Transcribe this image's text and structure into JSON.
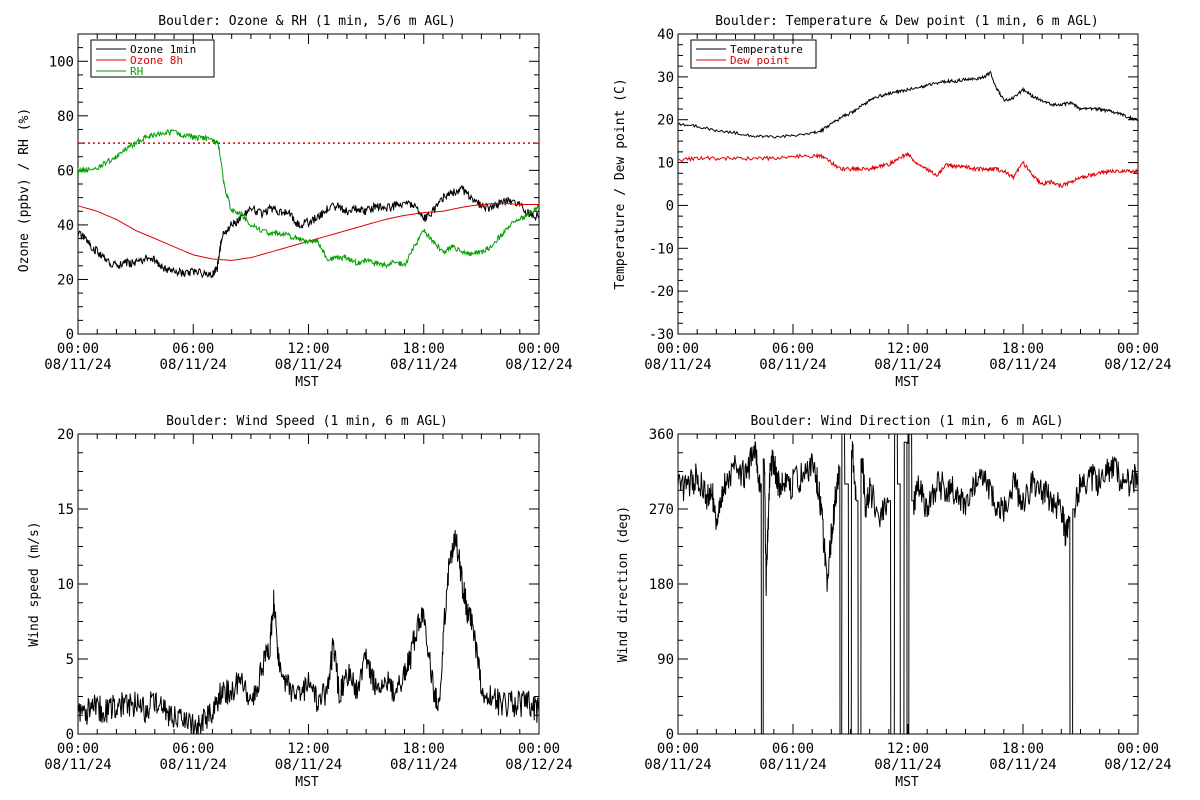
{
  "chart_data": [
    {
      "type": "line",
      "title": "Boulder: Ozone & RH (1 min, 5/6 m AGL)",
      "xlabel": "MST",
      "ylabel": "Ozone (ppbv) / RH (%)",
      "xlim_hours": [
        0,
        24
      ],
      "ylim": [
        0,
        110
      ],
      "yticks": [
        0,
        20,
        40,
        60,
        80,
        100
      ],
      "xtick_times": [
        "00:00",
        "06:00",
        "12:00",
        "18:00",
        "00:00"
      ],
      "xtick_dates": [
        "08/11/24",
        "08/11/24",
        "08/11/24",
        "08/11/24",
        "08/12/24"
      ],
      "reference_line": {
        "y": 70,
        "style": "dotted",
        "color": "#e00000"
      },
      "legend_position": "top-left",
      "series": [
        {
          "name": "Ozone 1min",
          "color": "#000000",
          "hours": [
            0,
            0.5,
            1,
            1.5,
            2,
            2.5,
            3,
            3.5,
            4,
            4.5,
            5,
            5.5,
            6,
            6.5,
            7,
            7.25,
            7.5,
            8,
            8.5,
            9,
            9.5,
            10,
            10.5,
            11,
            11.5,
            12,
            12.5,
            13,
            13.5,
            14,
            14.5,
            15,
            15.5,
            16,
            16.5,
            17,
            17.5,
            18,
            18.5,
            19,
            19.5,
            20,
            20.5,
            21,
            21.5,
            22,
            22.5,
            23,
            23.5,
            24
          ],
          "values": [
            37,
            34,
            30,
            27,
            25,
            26,
            26,
            28,
            27,
            24,
            23,
            22,
            23,
            22,
            22,
            24,
            36,
            40,
            42,
            47,
            44,
            46,
            45,
            44,
            40,
            41,
            43,
            46,
            47,
            45,
            46,
            45,
            47,
            46,
            47,
            48,
            47,
            42,
            45,
            50,
            52,
            53,
            50,
            47,
            46,
            48,
            49,
            47,
            44,
            43
          ]
        },
        {
          "name": "Ozone 8h",
          "color": "#e00000",
          "hours": [
            0,
            1,
            2,
            3,
            4,
            5,
            6,
            7,
            8,
            9,
            10,
            11,
            12,
            13,
            14,
            15,
            16,
            17,
            18,
            19,
            20,
            21,
            22,
            23,
            24
          ],
          "values": [
            47,
            45,
            42,
            38,
            35,
            32,
            29,
            27.5,
            27,
            28,
            30,
            32,
            34,
            36,
            38,
            40,
            42,
            43.5,
            44.5,
            45,
            46.5,
            47.5,
            48,
            47.5,
            47.5
          ]
        },
        {
          "name": "RH",
          "color": "#00a000",
          "hours": [
            0,
            0.5,
            1,
            1.5,
            2,
            2.5,
            3,
            3.5,
            4,
            4.5,
            5,
            5.5,
            6,
            6.5,
            7,
            7.3,
            7.6,
            8,
            8.5,
            9,
            9.5,
            10,
            10.5,
            11,
            11.5,
            12,
            12.5,
            13,
            13.5,
            14,
            14.5,
            15,
            15.5,
            16,
            16.5,
            17,
            17.5,
            18,
            18.5,
            19,
            19.5,
            20,
            20.5,
            21,
            21.5,
            22,
            22.5,
            23,
            23.5,
            24
          ],
          "values": [
            60,
            60,
            61,
            63,
            65,
            68,
            70,
            72,
            73,
            74,
            74,
            73,
            72,
            72,
            71,
            70,
            55,
            45,
            44,
            40,
            38,
            37,
            37,
            36,
            35,
            34,
            34,
            27,
            28,
            28,
            26,
            27,
            26,
            25,
            27,
            25,
            32,
            38,
            34,
            30,
            32,
            30,
            29,
            30,
            32,
            36,
            40,
            42,
            44,
            47
          ]
        }
      ]
    },
    {
      "type": "line",
      "title": "Boulder: Temperature & Dew point (1 min, 6 m AGL)",
      "xlabel": "MST",
      "ylabel": "Temperature / Dew point (C)",
      "xlim_hours": [
        0,
        24
      ],
      "ylim": [
        -30,
        40
      ],
      "yticks": [
        -30,
        -20,
        -10,
        0,
        10,
        20,
        30,
        40
      ],
      "xtick_times": [
        "00:00",
        "06:00",
        "12:00",
        "18:00",
        "00:00"
      ],
      "xtick_dates": [
        "08/11/24",
        "08/11/24",
        "08/11/24",
        "08/11/24",
        "08/12/24"
      ],
      "legend_position": "top-left",
      "series": [
        {
          "name": "Temperature",
          "color": "#000000",
          "hours": [
            0,
            1,
            2,
            3,
            4,
            5,
            6,
            7,
            7.5,
            8,
            8.5,
            9,
            9.5,
            10,
            10.5,
            11,
            11.5,
            12,
            12.5,
            13,
            13.5,
            14,
            14.5,
            15,
            15.5,
            16,
            16.3,
            16.6,
            17,
            17.5,
            18,
            18.5,
            19,
            19.5,
            20,
            20.5,
            21,
            21.5,
            22,
            22.5,
            23,
            23.5,
            24
          ],
          "values": [
            19,
            18.5,
            17.5,
            17,
            16.2,
            16,
            16.3,
            17,
            17.5,
            19,
            20.5,
            21.5,
            23,
            24.5,
            25.5,
            26,
            26.5,
            27,
            27.5,
            28,
            28.5,
            29,
            29,
            29.5,
            29.5,
            30,
            31,
            27.5,
            24.5,
            25,
            27,
            25.5,
            24.5,
            23.5,
            23.5,
            24,
            22.5,
            22.5,
            22.5,
            22,
            21.5,
            20.5,
            20
          ]
        },
        {
          "name": "Dew point",
          "color": "#e00000",
          "hours": [
            0,
            1,
            2,
            3,
            4,
            5,
            6,
            7,
            7.5,
            8,
            8.5,
            9,
            9.5,
            10,
            10.5,
            11,
            11.5,
            12,
            12.5,
            13,
            13.5,
            14,
            14.5,
            15,
            15.5,
            16,
            16.5,
            17,
            17.5,
            18,
            18.5,
            19,
            19.5,
            20,
            20.5,
            21,
            21.5,
            22,
            22.5,
            23,
            23.5,
            24
          ],
          "values": [
            10.5,
            11,
            11,
            11,
            11,
            11,
            11.5,
            11.5,
            11.5,
            10,
            8.5,
            8.5,
            8.5,
            8.5,
            9,
            9.5,
            11,
            12,
            9.5,
            8.5,
            7,
            9.5,
            9,
            9,
            8.5,
            8.5,
            8.5,
            8,
            6.5,
            10,
            7,
            5,
            5.5,
            4.5,
            5.5,
            6.5,
            7,
            7.5,
            8,
            8,
            8,
            8
          ]
        }
      ]
    },
    {
      "type": "line",
      "title": "Boulder: Wind Speed (1 min, 6 m AGL)",
      "xlabel": "MST",
      "ylabel": "Wind speed (m/s)",
      "xlim_hours": [
        0,
        24
      ],
      "ylim": [
        0,
        20
      ],
      "yticks": [
        0,
        5,
        10,
        15,
        20
      ],
      "xtick_times": [
        "00:00",
        "06:00",
        "12:00",
        "18:00",
        "00:00"
      ],
      "xtick_dates": [
        "08/11/24",
        "08/11/24",
        "08/11/24",
        "08/11/24",
        "08/12/24"
      ],
      "series": [
        {
          "color": "#000000",
          "hours": [
            0,
            0.5,
            1,
            1.5,
            2,
            2.5,
            3,
            3.5,
            4,
            4.5,
            5,
            5.5,
            6,
            6.5,
            7,
            7.5,
            8,
            8.5,
            9,
            9.5,
            10,
            10.2,
            10.5,
            11,
            11.5,
            12,
            12.5,
            13,
            13.3,
            13.6,
            14,
            14.5,
            15,
            15.5,
            16,
            16.5,
            17,
            17.3,
            17.6,
            18,
            18.5,
            18.8,
            19.1,
            19.4,
            19.7,
            20,
            20.3,
            20.6,
            21,
            21.5,
            22,
            22.5,
            23,
            23.5,
            24
          ],
          "values": [
            1.2,
            1.5,
            1.8,
            1.5,
            2,
            1.8,
            2,
            1.6,
            2.2,
            1.5,
            1.2,
            1,
            0.5,
            0.8,
            1.5,
            3,
            2.5,
            4,
            2,
            4,
            6,
            9,
            4,
            3,
            2.5,
            3.5,
            2,
            3,
            6,
            2.5,
            4,
            3,
            5,
            3,
            4,
            2.5,
            4,
            5,
            7,
            8,
            3,
            2,
            8,
            12,
            13,
            10,
            8,
            7,
            3,
            2.5,
            2,
            2,
            2,
            2,
            1.5
          ]
        }
      ]
    },
    {
      "type": "line",
      "title": "Boulder: Wind Direction (1 min, 6 m AGL)",
      "xlabel": "MST",
      "ylabel": "Wind direction (deg)",
      "xlim_hours": [
        0,
        24
      ],
      "ylim": [
        0,
        360
      ],
      "yticks": [
        0,
        90,
        180,
        270,
        360
      ],
      "xtick_times": [
        "00:00",
        "06:00",
        "12:00",
        "18:00",
        "00:00"
      ],
      "xtick_dates": [
        "08/11/24",
        "08/11/24",
        "08/11/24",
        "08/11/24",
        "08/12/24"
      ],
      "series": [
        {
          "color": "#000000",
          "hours": [
            0,
            0.5,
            1,
            1.5,
            1.8,
            2,
            2.2,
            2.5,
            3,
            3.5,
            4,
            4.3,
            4.4,
            4.5,
            4.6,
            4.8,
            5,
            5.2,
            5.5,
            6,
            6.5,
            7,
            7.3,
            7.5,
            7.8,
            8,
            8.2,
            8.4,
            8.5,
            8.6,
            8.8,
            9,
            9.1,
            9.3,
            9.5,
            9.6,
            9.8,
            10,
            10.5,
            11,
            11.2,
            11.4,
            11.5,
            11.7,
            11.9,
            12,
            12.1,
            12.3,
            12.5,
            13,
            13.5,
            14,
            14.5,
            15,
            15.5,
            16,
            16.5,
            17,
            17.5,
            18,
            18.5,
            19,
            19.5,
            20,
            20.2,
            20.4,
            20.5,
            20.7,
            21,
            21.5,
            22,
            22.5,
            23,
            23.5,
            24
          ],
          "values": [
            300,
            295,
            310,
            285,
            290,
            250,
            280,
            300,
            320,
            310,
            340,
            300,
            0,
            330,
            180,
            320,
            330,
            300,
            295,
            300,
            310,
            320,
            300,
            260,
            180,
            240,
            280,
            320,
            0,
            360,
            300,
            0,
            340,
            280,
            0,
            330,
            270,
            290,
            265,
            280,
            0,
            360,
            300,
            0,
            350,
            0,
            360,
            280,
            300,
            270,
            300,
            295,
            290,
            270,
            300,
            310,
            280,
            270,
            300,
            280,
            300,
            290,
            280,
            270,
            240,
            260,
            0,
            270,
            300,
            310,
            300,
            320,
            310,
            300,
            310
          ]
        }
      ]
    }
  ]
}
